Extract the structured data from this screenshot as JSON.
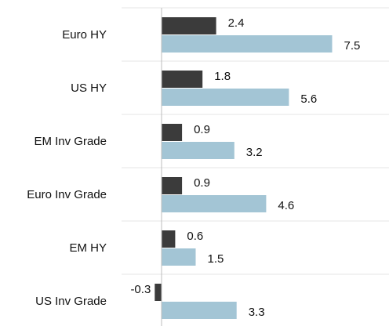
{
  "chart_data": {
    "type": "bar",
    "orientation": "horizontal",
    "categories": [
      "Euro HY",
      "US HY",
      "EM Inv Grade",
      "Euro Inv Grade",
      "EM HY",
      "US Inv Grade"
    ],
    "series": [
      {
        "color": "#3b3b3b",
        "values": [
          2.4,
          1.8,
          0.9,
          0.9,
          0.6,
          -0.3
        ]
      },
      {
        "color": "#a3c5d5",
        "values": [
          7.5,
          5.6,
          3.2,
          4.6,
          1.5,
          3.3
        ]
      }
    ],
    "xlim": [
      -2,
      10
    ]
  }
}
